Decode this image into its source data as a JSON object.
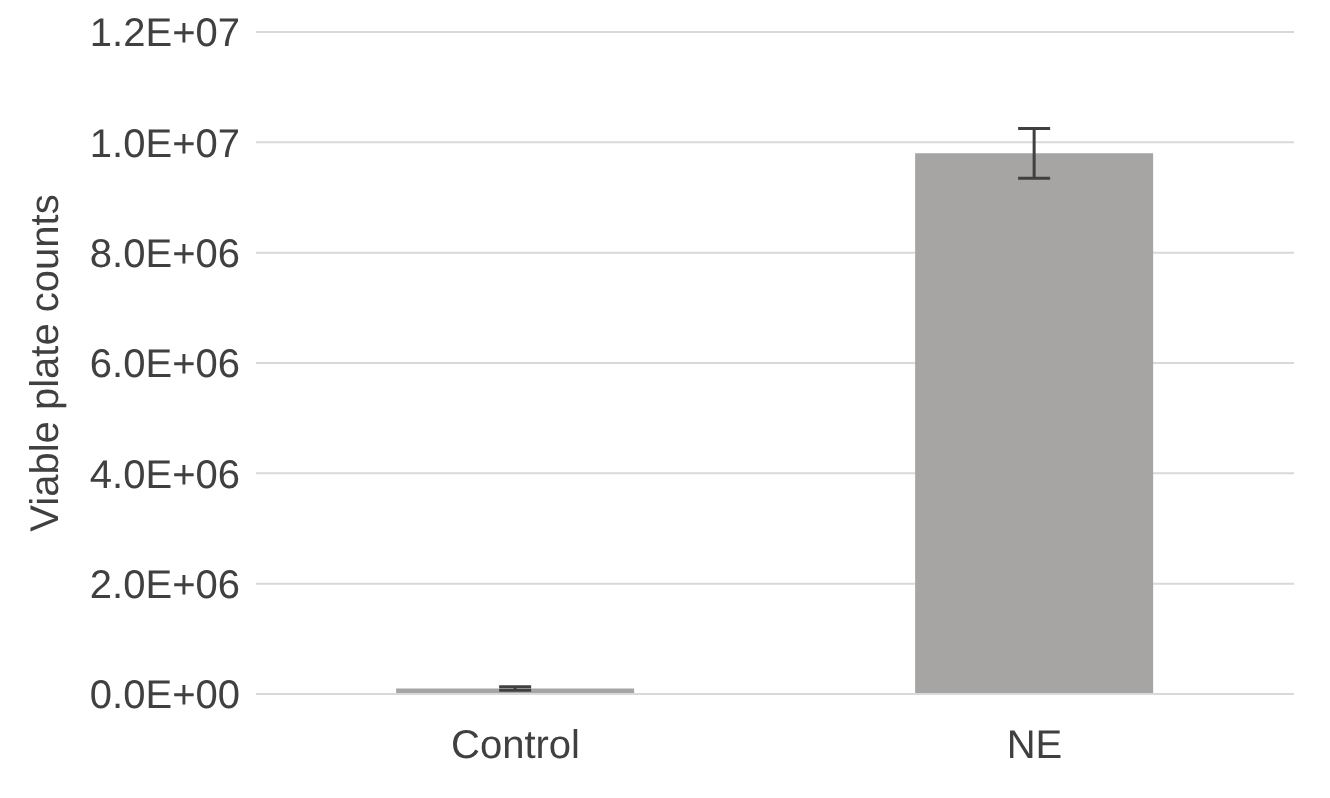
{
  "chart_data": {
    "type": "bar",
    "ylabel": "Viable plate counts",
    "categories": [
      "Control",
      "NE"
    ],
    "series": [
      {
        "color": "#a6a5a4",
        "values": [
          100000,
          9800000
        ],
        "errors": [
          30000,
          450000
        ]
      }
    ],
    "ylim": [
      0,
      12000000
    ],
    "yticks": [
      {
        "value": 0,
        "label": "0.0E+00"
      },
      {
        "value": 2000000,
        "label": "2.0E+06"
      },
      {
        "value": 4000000,
        "label": "4.0E+06"
      },
      {
        "value": 6000000,
        "label": "6.0E+06"
      },
      {
        "value": 8000000,
        "label": "8.0E+06"
      },
      {
        "value": 10000000,
        "label": "1.0E+07"
      },
      {
        "value": 12000000,
        "label": "1.2E+07"
      }
    ],
    "grid": "y",
    "legend": false
  }
}
